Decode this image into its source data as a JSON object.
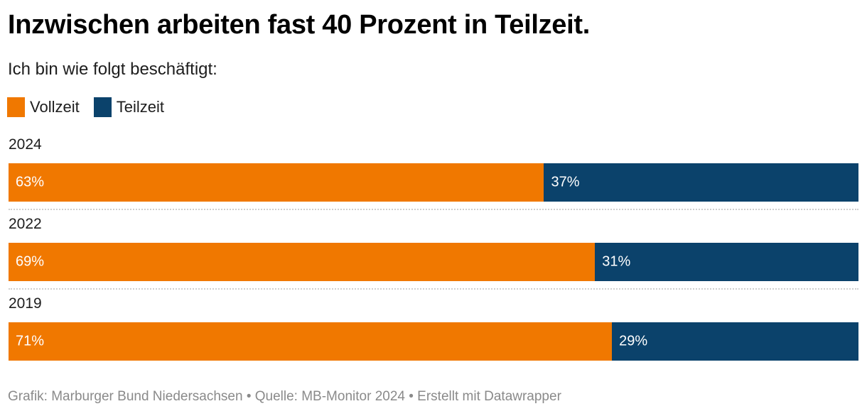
{
  "title": "Inzwischen arbeiten fast 40 Prozent in Teilzeit.",
  "subtitle": "Ich bin wie folgt beschäftigt:",
  "colors": {
    "vollzeit": "#f07800",
    "teilzeit": "#0b426b"
  },
  "legend": [
    {
      "label": "Vollzeit",
      "color": "#f07800"
    },
    {
      "label": "Teilzeit",
      "color": "#0b426b"
    }
  ],
  "footer": "Grafik: Marburger Bund Niedersachsen • Quelle: MB-Monitor 2024 • Erstellt mit Datawrapper",
  "chart_data": {
    "type": "bar",
    "stacked": true,
    "orientation": "horizontal",
    "title": "Inzwischen arbeiten fast 40 Prozent in Teilzeit.",
    "subtitle": "Ich bin wie folgt beschäftigt:",
    "categories": [
      "2024",
      "2022",
      "2019"
    ],
    "series": [
      {
        "name": "Vollzeit",
        "values": [
          63,
          69,
          71
        ],
        "labels": [
          "63%",
          "69%",
          "71%"
        ],
        "color": "#f07800"
      },
      {
        "name": "Teilzeit",
        "values": [
          37,
          31,
          29
        ],
        "labels": [
          "37%",
          "31%",
          "29%"
        ],
        "color": "#0b426b"
      }
    ],
    "unit": "%",
    "xlim": [
      0,
      100
    ],
    "xlabel": "",
    "ylabel": "",
    "grid": false,
    "legend_position": "top-left"
  }
}
